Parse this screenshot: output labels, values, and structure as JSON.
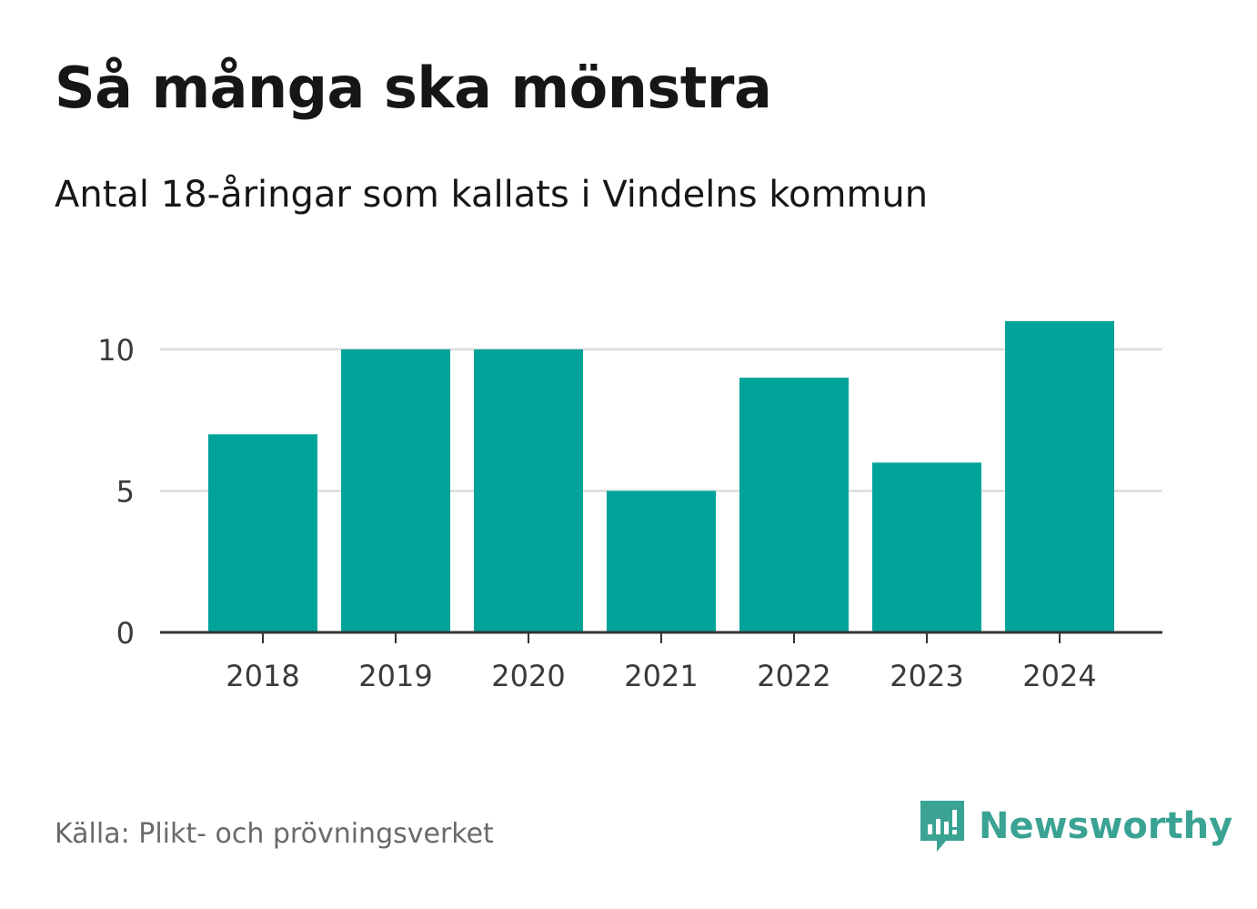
{
  "header": {
    "title": "Så många ska mönstra",
    "subtitle": "Antal 18-åringar som kallats i Vindelns kommun"
  },
  "footer": {
    "source": "Källa: Plikt- och prövningsverket",
    "brand": "Newsworthy",
    "brand_color": "#3aa393"
  },
  "chart_data": {
    "type": "bar",
    "categories": [
      "2018",
      "2019",
      "2020",
      "2021",
      "2022",
      "2023",
      "2024"
    ],
    "values": [
      7,
      10,
      10,
      5,
      9,
      6,
      11
    ],
    "yticks": [
      0,
      5,
      10
    ],
    "ylim": [
      0,
      11
    ],
    "title": "Så många ska mönstra",
    "xlabel": "",
    "ylabel": "",
    "bar_color": "#00a39a",
    "grid": true
  }
}
